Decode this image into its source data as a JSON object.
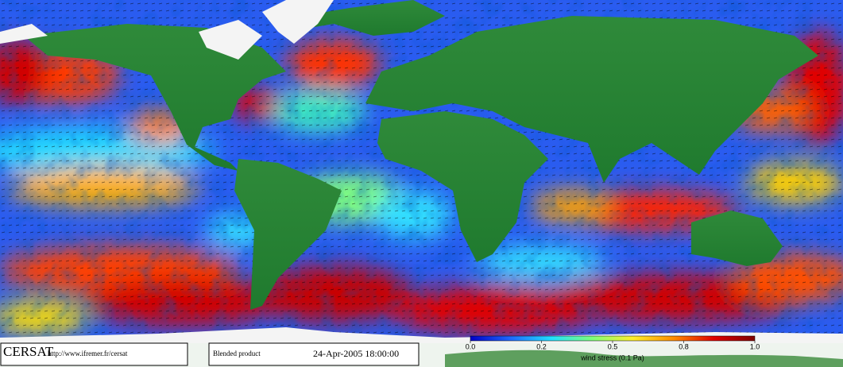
{
  "footer": {
    "logo": "CERSAT",
    "url": "http://www.ifremer.fr/cersat",
    "product": "Blended product",
    "timestamp": "24-Apr-2005 18:00:00"
  },
  "colorbar": {
    "ticks": [
      {
        "value": 0,
        "label": "0.0"
      },
      0.2,
      0.5,
      0.8,
      {
        "value": 1,
        "label": "1.0"
      }
    ],
    "label": "wind stress (0.1 Pa)",
    "colors": [
      "#0000c8",
      "#1e6bff",
      "#21e0ff",
      "#7dff7a",
      "#fff02a",
      "#ff8c00",
      "#e00000",
      "#800000"
    ]
  }
}
